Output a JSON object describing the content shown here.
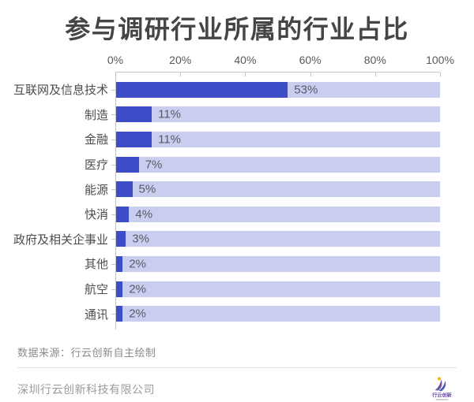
{
  "title": "参与调研行业所属的行业占比",
  "chart_data": {
    "type": "bar",
    "orientation": "horizontal",
    "categories": [
      "互联网及信息技术",
      "制造",
      "金融",
      "医疗",
      "能源",
      "快消",
      "政府及相关企事业",
      "其他",
      "航空",
      "通讯"
    ],
    "values": [
      53,
      11,
      11,
      7,
      5,
      4,
      3,
      2,
      2,
      2
    ],
    "value_labels": [
      "53%",
      "11%",
      "11%",
      "7%",
      "5%",
      "4%",
      "3%",
      "2%",
      "2%",
      "2%"
    ],
    "x_ticks": [
      "0%",
      "20%",
      "40%",
      "60%",
      "80%",
      "100%"
    ],
    "xlim": [
      0,
      100
    ],
    "grid": false,
    "legend": "none",
    "bar_color": "#3d4dc8",
    "track_color": "#c9cdf0",
    "axis_line_color": "#c6c6c6"
  },
  "footer": {
    "source": "数据来源：行云创新自主绘制",
    "company": "深圳行云创新科技有限公司",
    "logo_text": "行云创新"
  },
  "colors": {
    "title": "#454545",
    "category_label": "#4d4d4d",
    "value_label": "#5a5a64",
    "logo_purple": "#6e4fa4",
    "logo_blue": "#4c5ab8",
    "logo_yellow": "#f2b705"
  }
}
